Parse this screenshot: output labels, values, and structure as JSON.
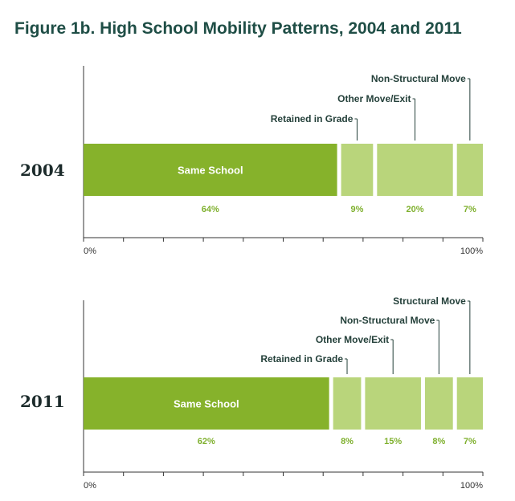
{
  "chart_data": {
    "type": "bar",
    "orientation": "horizontal-stacked",
    "title": "Figure 1b. High School Mobility Patterns, 2004 and 2011",
    "xlim": [
      0,
      100
    ],
    "axis_tick_labels": {
      "min": "0%",
      "max": "100%"
    },
    "colors": {
      "primary": "#86b22b",
      "secondary": "#b9d57b",
      "title": "#1f4e46",
      "percent_text": "#7fb02e"
    },
    "panels": [
      {
        "year": "2004",
        "segments": [
          {
            "name": "Same School",
            "value": 64,
            "label": "64%",
            "inside_label": "Same School",
            "callout": ""
          },
          {
            "name": "Retained in Grade",
            "value": 9,
            "label": "9%",
            "inside_label": "",
            "callout": "Retained in Grade"
          },
          {
            "name": "Other Move/Exit",
            "value": 20,
            "label": "20%",
            "inside_label": "",
            "callout": "Other Move/Exit"
          },
          {
            "name": "Non-Structural Move",
            "value": 7,
            "label": "7%",
            "inside_label": "",
            "callout": "Non-Structural Move"
          }
        ]
      },
      {
        "year": "2011",
        "segments": [
          {
            "name": "Same School",
            "value": 62,
            "label": "62%",
            "inside_label": "Same School",
            "callout": ""
          },
          {
            "name": "Retained in Grade",
            "value": 8,
            "label": "8%",
            "inside_label": "",
            "callout": "Retained in Grade"
          },
          {
            "name": "Other Move/Exit",
            "value": 15,
            "label": "15%",
            "inside_label": "",
            "callout": "Other Move/Exit"
          },
          {
            "name": "Non-Structural Move",
            "value": 8,
            "label": "8%",
            "inside_label": "",
            "callout": "Non-Structural Move"
          },
          {
            "name": "Structural Move",
            "value": 7,
            "label": "7%",
            "inside_label": "",
            "callout": "Structural Move"
          }
        ]
      }
    ]
  }
}
